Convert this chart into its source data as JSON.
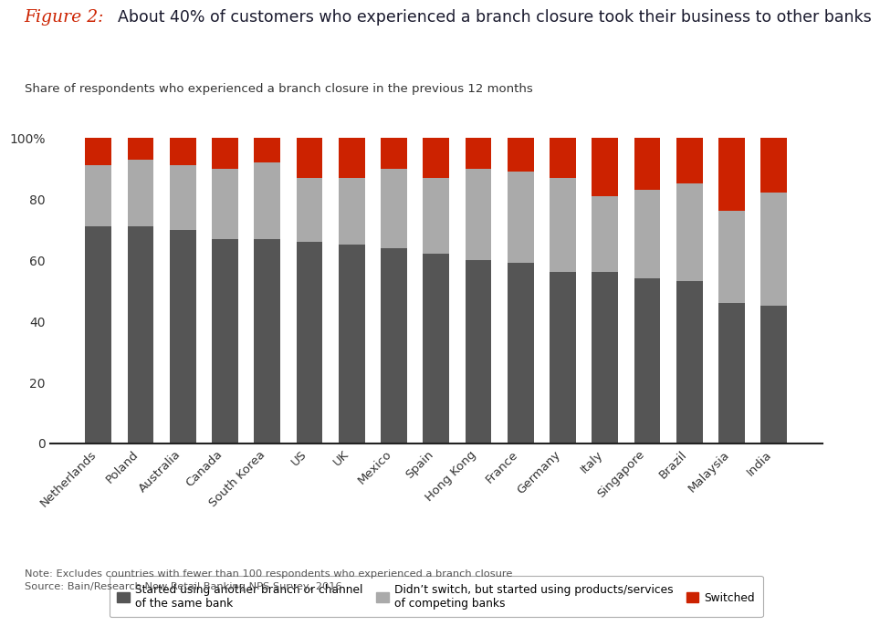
{
  "categories": [
    "Netherlands",
    "Poland",
    "Australia",
    "Canada",
    "South Korea",
    "US",
    "UK",
    "Mexico",
    "Spain",
    "Hong Kong",
    "France",
    "Germany",
    "Italy",
    "Singapore",
    "Brazil",
    "Malaysia",
    "India"
  ],
  "dark_gray": [
    71,
    71,
    70,
    67,
    67,
    66,
    65,
    64,
    62,
    60,
    59,
    56,
    56,
    54,
    53,
    46,
    45
  ],
  "light_gray": [
    20,
    22,
    21,
    23,
    25,
    21,
    22,
    26,
    25,
    30,
    30,
    31,
    25,
    29,
    32,
    30,
    37
  ],
  "red": [
    9,
    7,
    9,
    10,
    8,
    13,
    13,
    10,
    13,
    10,
    11,
    13,
    19,
    17,
    15,
    24,
    18
  ],
  "color_dark": "#555555",
  "color_light": "#aaaaaa",
  "color_red": "#cc2200",
  "title_fig": "Figure 2:",
  "title_main": "About 40% of customers who experienced a branch closure took their business to other banks",
  "subtitle": "Share of respondents who experienced a branch closure in the previous 12 months",
  "legend_dark": "Started using another branch or channel\nof the same bank",
  "legend_light": "Didn’t switch, but started using products/services\nof competing banks",
  "legend_red": "Switched",
  "note": "Note: Excludes countries with fewer than 100 respondents who experienced a branch closure",
  "source": "Source: Bain/Research Now Retail Banking NPS Survey, 2016",
  "background_color": "#ffffff",
  "title_main_color": "#1a1a2e",
  "subtitle_color": "#333333",
  "note_color": "#555555"
}
